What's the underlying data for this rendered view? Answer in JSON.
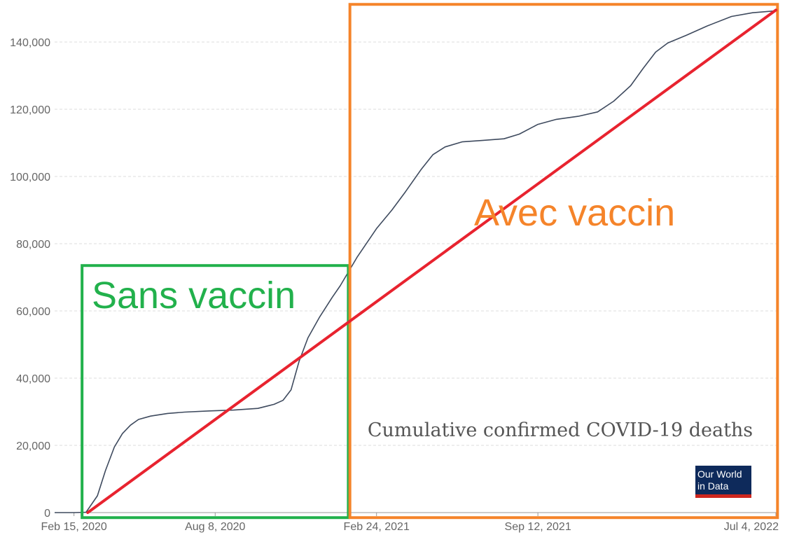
{
  "chart_data": {
    "type": "line",
    "title": "Cumulative confirmed COVID-19 deaths",
    "x_tick_labels": [
      "Feb 15, 2020",
      "Aug 8, 2020",
      "Feb 24, 2021",
      "Sep 12, 2021",
      "Jul 4, 2022"
    ],
    "y_tick_labels": [
      "0",
      "20,000",
      "40,000",
      "60,000",
      "80,000",
      "100,000",
      "120,000",
      "140,000"
    ],
    "x_range": [
      "2020-01-22",
      "2022-07-04"
    ],
    "ylim": [
      0,
      150000
    ],
    "grid": "horizontal dashed",
    "series": [
      {
        "color": "#3e4a5e",
        "points": [
          [
            "2020-01-22",
            0
          ],
          [
            "2020-02-15",
            0
          ],
          [
            "2020-03-01",
            100
          ],
          [
            "2020-03-15",
            5000
          ],
          [
            "2020-03-25",
            12500
          ],
          [
            "2020-04-05",
            19500
          ],
          [
            "2020-04-15",
            23500
          ],
          [
            "2020-04-25",
            26000
          ],
          [
            "2020-05-05",
            27700
          ],
          [
            "2020-05-20",
            28700
          ],
          [
            "2020-06-10",
            29500
          ],
          [
            "2020-07-01",
            29900
          ],
          [
            "2020-08-01",
            30250
          ],
          [
            "2020-08-31",
            30500
          ],
          [
            "2020-09-30",
            31000
          ],
          [
            "2020-10-20",
            32200
          ],
          [
            "2020-10-31",
            33400
          ],
          [
            "2020-11-10",
            36500
          ],
          [
            "2020-11-20",
            45000
          ],
          [
            "2020-12-01",
            52000
          ],
          [
            "2020-12-15",
            58000
          ],
          [
            "2020-12-31",
            64000
          ],
          [
            "2021-01-10",
            67500
          ],
          [
            "2021-01-31",
            76000
          ],
          [
            "2021-02-24",
            84500
          ],
          [
            "2021-03-15",
            90000
          ],
          [
            "2021-04-01",
            95500
          ],
          [
            "2021-04-20",
            102000
          ],
          [
            "2021-05-05",
            106500
          ],
          [
            "2021-05-20",
            108800
          ],
          [
            "2021-06-10",
            110300
          ],
          [
            "2021-07-05",
            110700
          ],
          [
            "2021-08-01",
            111200
          ],
          [
            "2021-08-20",
            112600
          ],
          [
            "2021-09-12",
            115500
          ],
          [
            "2021-10-05",
            117000
          ],
          [
            "2021-11-01",
            117900
          ],
          [
            "2021-11-25",
            119200
          ],
          [
            "2021-12-15",
            122400
          ],
          [
            "2022-01-05",
            127000
          ],
          [
            "2022-01-20",
            132000
          ],
          [
            "2022-02-05",
            137000
          ],
          [
            "2022-02-20",
            139700
          ],
          [
            "2022-03-15",
            142000
          ],
          [
            "2022-04-10",
            144800
          ],
          [
            "2022-05-10",
            147600
          ],
          [
            "2022-06-05",
            148700
          ],
          [
            "2022-07-04",
            149300
          ]
        ]
      }
    ],
    "annotations": [
      {
        "type": "trend_line",
        "color": "#e8232f",
        "from": [
          "2020-03-03",
          0
        ],
        "to": [
          "2022-07-04",
          149500
        ]
      },
      {
        "type": "box",
        "label": "Sans vaccin",
        "color": "#22b14c",
        "x_from": "2020-02-25",
        "x_to": "2021-01-20",
        "y_from": -1500,
        "y_to": 73500
      },
      {
        "type": "box",
        "label": "Avec vaccin",
        "color": "#f5842a",
        "x_from": "2021-01-22",
        "x_to": "2022-07-06",
        "y_from": -1500,
        "y_to": 151200
      }
    ]
  },
  "labels": {
    "sans_vaccin": "Sans vaccin",
    "avec_vaccin": "Avec vaccin"
  },
  "logo": {
    "line1": "Our World",
    "line2": "in Data"
  }
}
